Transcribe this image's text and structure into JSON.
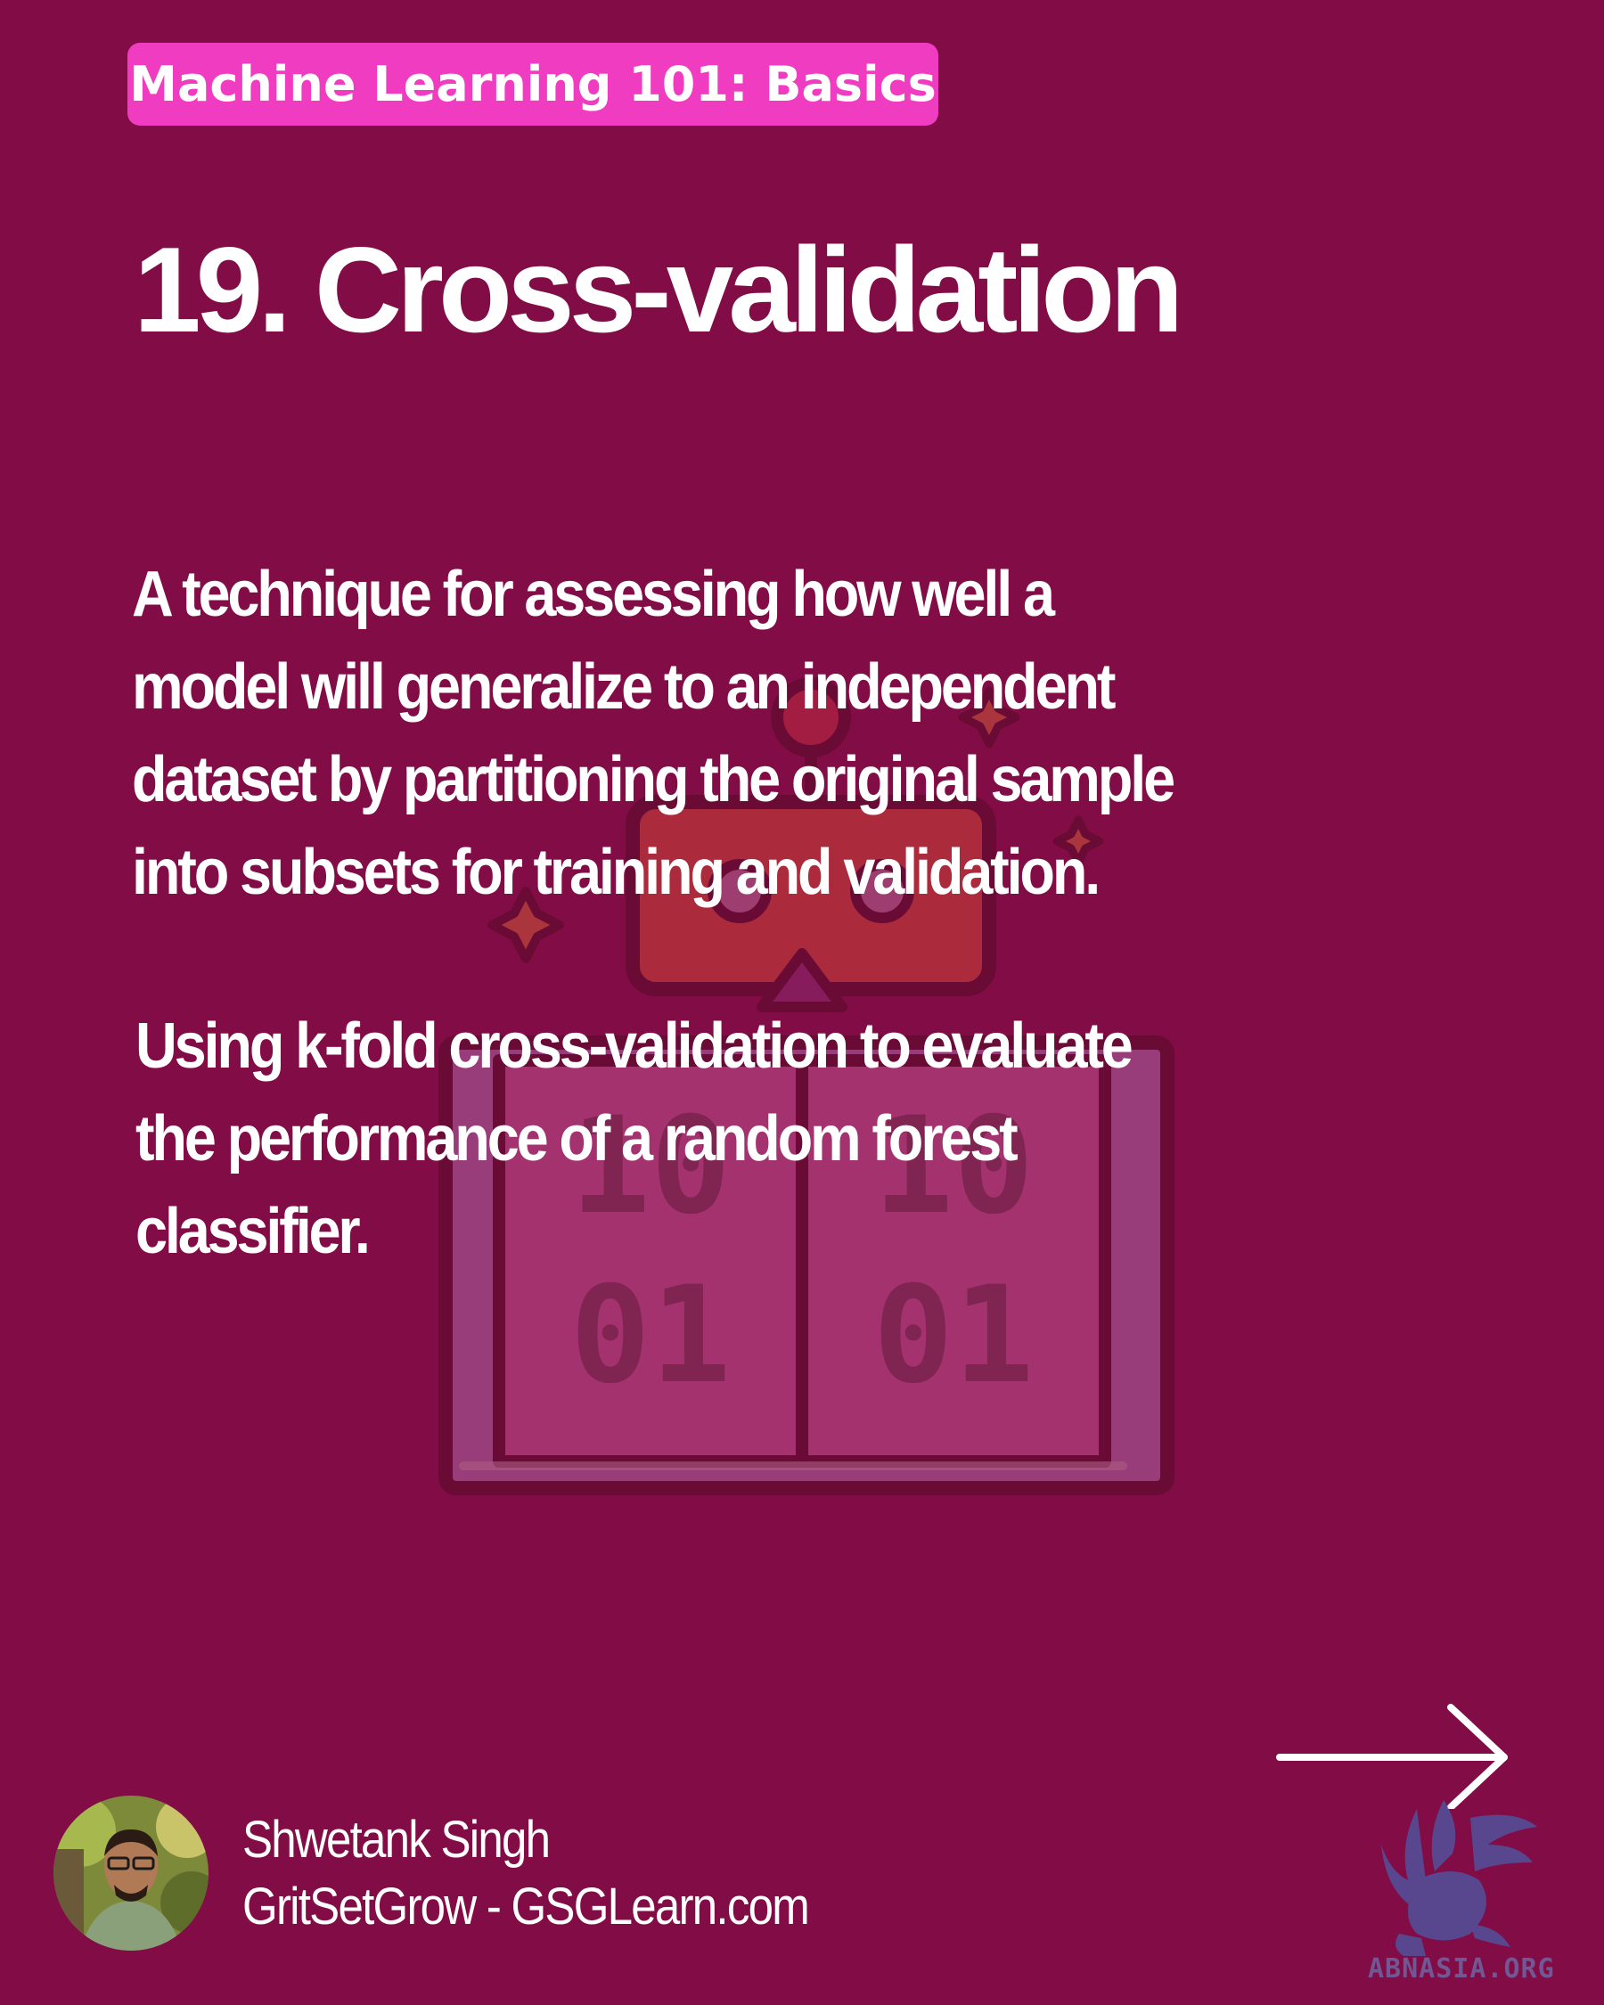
{
  "header": {
    "badge_label": "Machine Learning 101: Basics",
    "title": "19. Cross-validation"
  },
  "content": {
    "definition_lines": [
      "A technique for assessing how well a",
      "model will generalize to an independent",
      "dataset by partitioning the original sample",
      "into subsets for training and validation."
    ],
    "example_lines": [
      "Using k-fold cross-validation to evaluate",
      "the performance of a random forest",
      "classifier."
    ]
  },
  "background_illustration": {
    "icon": "binary-book-robot-icon",
    "digits": {
      "left_page_top": "10",
      "left_page_bottom": "01",
      "right_page_top": "10",
      "right_page_bottom": "01"
    }
  },
  "navigation": {
    "next_icon": "arrow-right-icon"
  },
  "author": {
    "name": "Shwetank Singh",
    "site": "GritSetGrow - GSGLearn.com",
    "avatar_icon": "author-avatar"
  },
  "watermark": {
    "logo_icon": "griffin-logo-icon",
    "text": "ABNASIA.ORG"
  },
  "colors": {
    "background": "#820c45",
    "badge": "#f03cc0",
    "text": "#ffffff"
  }
}
